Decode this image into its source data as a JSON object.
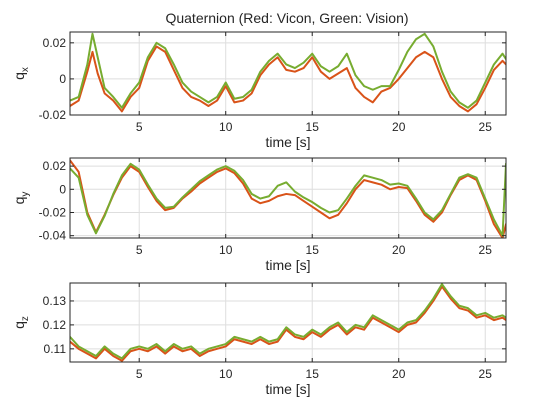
{
  "figure": {
    "title": "Quaternion (Red: Vicon, Green: Vision)"
  },
  "colors": {
    "vicon": "#d95319",
    "vision": "#77ac30"
  },
  "chart_data": [
    {
      "type": "line",
      "title": "Quaternion (Red: Vicon, Green: Vision)",
      "xlabel": "time [s]",
      "ylabel": "q",
      "ylabel_sub": "x",
      "xlim": [
        1.0,
        26.2
      ],
      "ylim": [
        -0.02,
        0.026
      ],
      "xticks": [
        5,
        10,
        15,
        20,
        25
      ],
      "xtick_labels": [
        "5",
        "10",
        "15",
        "20",
        "25"
      ],
      "yticks": [
        -0.02,
        0,
        0.02
      ],
      "ytick_labels": [
        "-0.02",
        "0",
        "0.02"
      ],
      "grid": true,
      "series": [
        {
          "color": "#d95319",
          "x": [
            1.0,
            1.5,
            2.0,
            2.3,
            2.6,
            3.0,
            3.5,
            4.0,
            4.5,
            5.0,
            5.5,
            6.0,
            6.5,
            7.0,
            7.5,
            8.0,
            8.5,
            9.0,
            9.5,
            10.0,
            10.5,
            11.0,
            11.5,
            12.0,
            12.5,
            13.0,
            13.5,
            14.0,
            14.5,
            15.0,
            15.5,
            16.0,
            16.5,
            17.0,
            17.5,
            18.0,
            18.5,
            19.0,
            19.5,
            20.0,
            20.5,
            21.0,
            21.5,
            22.0,
            22.5,
            23.0,
            23.5,
            24.0,
            24.5,
            25.0,
            25.5,
            26.0,
            26.2
          ],
          "y": [
            -0.015,
            -0.012,
            0.004,
            0.015,
            0.003,
            -0.008,
            -0.012,
            -0.018,
            -0.01,
            -0.005,
            0.01,
            0.018,
            0.015,
            0.005,
            -0.005,
            -0.01,
            -0.012,
            -0.015,
            -0.012,
            -0.004,
            -0.013,
            -0.012,
            -0.008,
            0.002,
            0.008,
            0.012,
            0.005,
            0.004,
            0.006,
            0.012,
            0.004,
            0.0,
            0.003,
            0.006,
            -0.005,
            -0.01,
            -0.013,
            -0.007,
            -0.005,
            0.0,
            0.006,
            0.012,
            0.015,
            0.012,
            0.0,
            -0.01,
            -0.015,
            -0.018,
            -0.014,
            -0.005,
            0.005,
            0.01,
            0.008
          ]
        },
        {
          "color": "#77ac30",
          "x": [
            1.0,
            1.5,
            2.0,
            2.3,
            2.6,
            3.0,
            3.5,
            4.0,
            4.5,
            5.0,
            5.5,
            6.0,
            6.5,
            7.0,
            7.5,
            8.0,
            8.5,
            9.0,
            9.5,
            10.0,
            10.5,
            11.0,
            11.5,
            12.0,
            12.5,
            13.0,
            13.5,
            14.0,
            14.5,
            15.0,
            15.5,
            16.0,
            16.5,
            17.0,
            17.5,
            18.0,
            18.5,
            19.0,
            19.5,
            20.0,
            20.5,
            21.0,
            21.5,
            22.0,
            22.5,
            23.0,
            23.5,
            24.0,
            24.5,
            25.0,
            25.5,
            26.0,
            26.2
          ],
          "y": [
            -0.012,
            -0.01,
            0.008,
            0.025,
            0.012,
            -0.005,
            -0.01,
            -0.016,
            -0.008,
            -0.002,
            0.012,
            0.02,
            0.017,
            0.008,
            -0.002,
            -0.007,
            -0.01,
            -0.013,
            -0.01,
            -0.002,
            -0.011,
            -0.01,
            -0.006,
            0.004,
            0.01,
            0.014,
            0.008,
            0.006,
            0.009,
            0.014,
            0.007,
            0.004,
            0.007,
            0.014,
            0.002,
            -0.004,
            -0.006,
            -0.004,
            -0.004,
            0.005,
            0.015,
            0.022,
            0.025,
            0.018,
            0.004,
            -0.007,
            -0.013,
            -0.016,
            -0.012,
            -0.002,
            0.008,
            0.014,
            0.011
          ]
        }
      ]
    },
    {
      "type": "line",
      "xlabel": "time [s]",
      "ylabel": "q",
      "ylabel_sub": "y",
      "xlim": [
        1.0,
        26.2
      ],
      "ylim": [
        -0.042,
        0.027
      ],
      "xticks": [
        5,
        10,
        15,
        20,
        25
      ],
      "xtick_labels": [
        "5",
        "10",
        "15",
        "20",
        "25"
      ],
      "yticks": [
        -0.04,
        -0.02,
        0,
        0.02
      ],
      "ytick_labels": [
        "-0.04",
        "-0.02",
        "0",
        "0.02"
      ],
      "grid": true,
      "series": [
        {
          "color": "#d95319",
          "x": [
            1.0,
            1.5,
            2.0,
            2.5,
            3.0,
            3.5,
            4.0,
            4.5,
            5.0,
            5.5,
            6.0,
            6.5,
            7.0,
            7.5,
            8.0,
            8.5,
            9.0,
            9.5,
            10.0,
            10.5,
            11.0,
            11.5,
            12.0,
            12.5,
            13.0,
            13.5,
            14.0,
            14.5,
            15.0,
            15.5,
            16.0,
            16.5,
            17.0,
            17.5,
            18.0,
            18.5,
            19.0,
            19.5,
            20.0,
            20.5,
            21.0,
            21.5,
            22.0,
            22.5,
            23.0,
            23.5,
            24.0,
            24.5,
            25.0,
            25.5,
            26.0,
            26.2
          ],
          "y": [
            0.025,
            0.015,
            -0.02,
            -0.037,
            -0.022,
            -0.005,
            0.01,
            0.02,
            0.015,
            0.002,
            -0.01,
            -0.018,
            -0.016,
            -0.008,
            -0.002,
            0.005,
            0.01,
            0.015,
            0.018,
            0.014,
            0.005,
            -0.008,
            -0.012,
            -0.01,
            -0.006,
            -0.004,
            -0.005,
            -0.01,
            -0.015,
            -0.02,
            -0.025,
            -0.022,
            -0.012,
            0.0,
            0.008,
            0.006,
            0.004,
            0.0,
            0.002,
            0.001,
            -0.01,
            -0.022,
            -0.028,
            -0.02,
            -0.005,
            0.008,
            0.012,
            0.008,
            -0.01,
            -0.03,
            -0.042,
            -0.03
          ]
        },
        {
          "color": "#77ac30",
          "x": [
            1.0,
            1.5,
            2.0,
            2.5,
            3.0,
            3.5,
            4.0,
            4.5,
            5.0,
            5.5,
            6.0,
            6.5,
            7.0,
            7.5,
            8.0,
            8.5,
            9.0,
            9.5,
            10.0,
            10.5,
            11.0,
            11.5,
            12.0,
            12.5,
            13.0,
            13.5,
            14.0,
            14.5,
            15.0,
            15.5,
            16.0,
            16.5,
            17.0,
            17.5,
            18.0,
            18.5,
            19.0,
            19.5,
            20.0,
            20.5,
            21.0,
            21.5,
            22.0,
            22.5,
            23.0,
            23.5,
            24.0,
            24.5,
            25.0,
            25.5,
            26.0,
            26.2
          ],
          "y": [
            0.018,
            0.01,
            -0.022,
            -0.038,
            -0.023,
            -0.004,
            0.012,
            0.022,
            0.017,
            0.004,
            -0.008,
            -0.016,
            -0.015,
            -0.007,
            0.0,
            0.007,
            0.012,
            0.017,
            0.02,
            0.016,
            0.008,
            -0.004,
            -0.008,
            -0.006,
            0.003,
            0.006,
            -0.002,
            -0.007,
            -0.011,
            -0.016,
            -0.02,
            -0.018,
            -0.008,
            0.003,
            0.012,
            0.01,
            0.008,
            0.004,
            0.005,
            0.003,
            -0.008,
            -0.02,
            -0.026,
            -0.018,
            -0.004,
            0.01,
            0.013,
            0.01,
            -0.008,
            -0.026,
            -0.04,
            0.022
          ]
        }
      ]
    },
    {
      "type": "line",
      "xlabel": "time [s]",
      "ylabel": "q",
      "ylabel_sub": "z",
      "xlim": [
        1.0,
        26.2
      ],
      "ylim": [
        0.1045,
        0.1375
      ],
      "xticks": [
        5,
        10,
        15,
        20,
        25
      ],
      "xtick_labels": [
        "5",
        "10",
        "15",
        "20",
        "25"
      ],
      "yticks": [
        0.11,
        0.12,
        0.13
      ],
      "ytick_labels": [
        "0.11",
        "0.12",
        "0.13"
      ],
      "grid": true,
      "series": [
        {
          "color": "#d95319",
          "x": [
            1.0,
            1.5,
            2.0,
            2.5,
            3.0,
            3.5,
            4.0,
            4.5,
            5.0,
            5.5,
            6.0,
            6.5,
            7.0,
            7.5,
            8.0,
            8.5,
            9.0,
            9.5,
            10.0,
            10.5,
            11.0,
            11.5,
            12.0,
            12.5,
            13.0,
            13.5,
            14.0,
            14.5,
            15.0,
            15.5,
            16.0,
            16.5,
            17.0,
            17.5,
            18.0,
            18.5,
            19.0,
            19.5,
            20.0,
            20.5,
            21.0,
            21.5,
            22.0,
            22.5,
            23.0,
            23.5,
            24.0,
            24.5,
            25.0,
            25.5,
            26.0,
            26.2
          ],
          "y": [
            0.113,
            0.11,
            0.108,
            0.106,
            0.11,
            0.107,
            0.105,
            0.109,
            0.11,
            0.109,
            0.111,
            0.108,
            0.111,
            0.109,
            0.11,
            0.107,
            0.109,
            0.11,
            0.111,
            0.114,
            0.113,
            0.112,
            0.114,
            0.112,
            0.113,
            0.118,
            0.115,
            0.114,
            0.117,
            0.115,
            0.118,
            0.12,
            0.116,
            0.119,
            0.118,
            0.123,
            0.121,
            0.119,
            0.117,
            0.12,
            0.121,
            0.125,
            0.13,
            0.136,
            0.131,
            0.127,
            0.126,
            0.123,
            0.124,
            0.122,
            0.123,
            0.122
          ]
        },
        {
          "color": "#77ac30",
          "x": [
            1.0,
            1.5,
            2.0,
            2.5,
            3.0,
            3.5,
            4.0,
            4.5,
            5.0,
            5.5,
            6.0,
            6.5,
            7.0,
            7.5,
            8.0,
            8.5,
            9.0,
            9.5,
            10.0,
            10.5,
            11.0,
            11.5,
            12.0,
            12.5,
            13.0,
            13.5,
            14.0,
            14.5,
            15.0,
            15.5,
            16.0,
            16.5,
            17.0,
            17.5,
            18.0,
            18.5,
            19.0,
            19.5,
            20.0,
            20.5,
            21.0,
            21.5,
            22.0,
            22.5,
            23.0,
            23.5,
            24.0,
            24.5,
            25.0,
            25.5,
            26.0,
            26.2
          ],
          "y": [
            0.115,
            0.111,
            0.109,
            0.107,
            0.111,
            0.108,
            0.106,
            0.11,
            0.111,
            0.11,
            0.112,
            0.109,
            0.112,
            0.11,
            0.111,
            0.108,
            0.11,
            0.111,
            0.112,
            0.115,
            0.114,
            0.113,
            0.115,
            0.113,
            0.114,
            0.119,
            0.116,
            0.115,
            0.118,
            0.116,
            0.119,
            0.121,
            0.117,
            0.12,
            0.119,
            0.124,
            0.122,
            0.12,
            0.118,
            0.121,
            0.122,
            0.126,
            0.131,
            0.137,
            0.132,
            0.128,
            0.127,
            0.124,
            0.125,
            0.123,
            0.124,
            0.123
          ]
        }
      ]
    }
  ]
}
